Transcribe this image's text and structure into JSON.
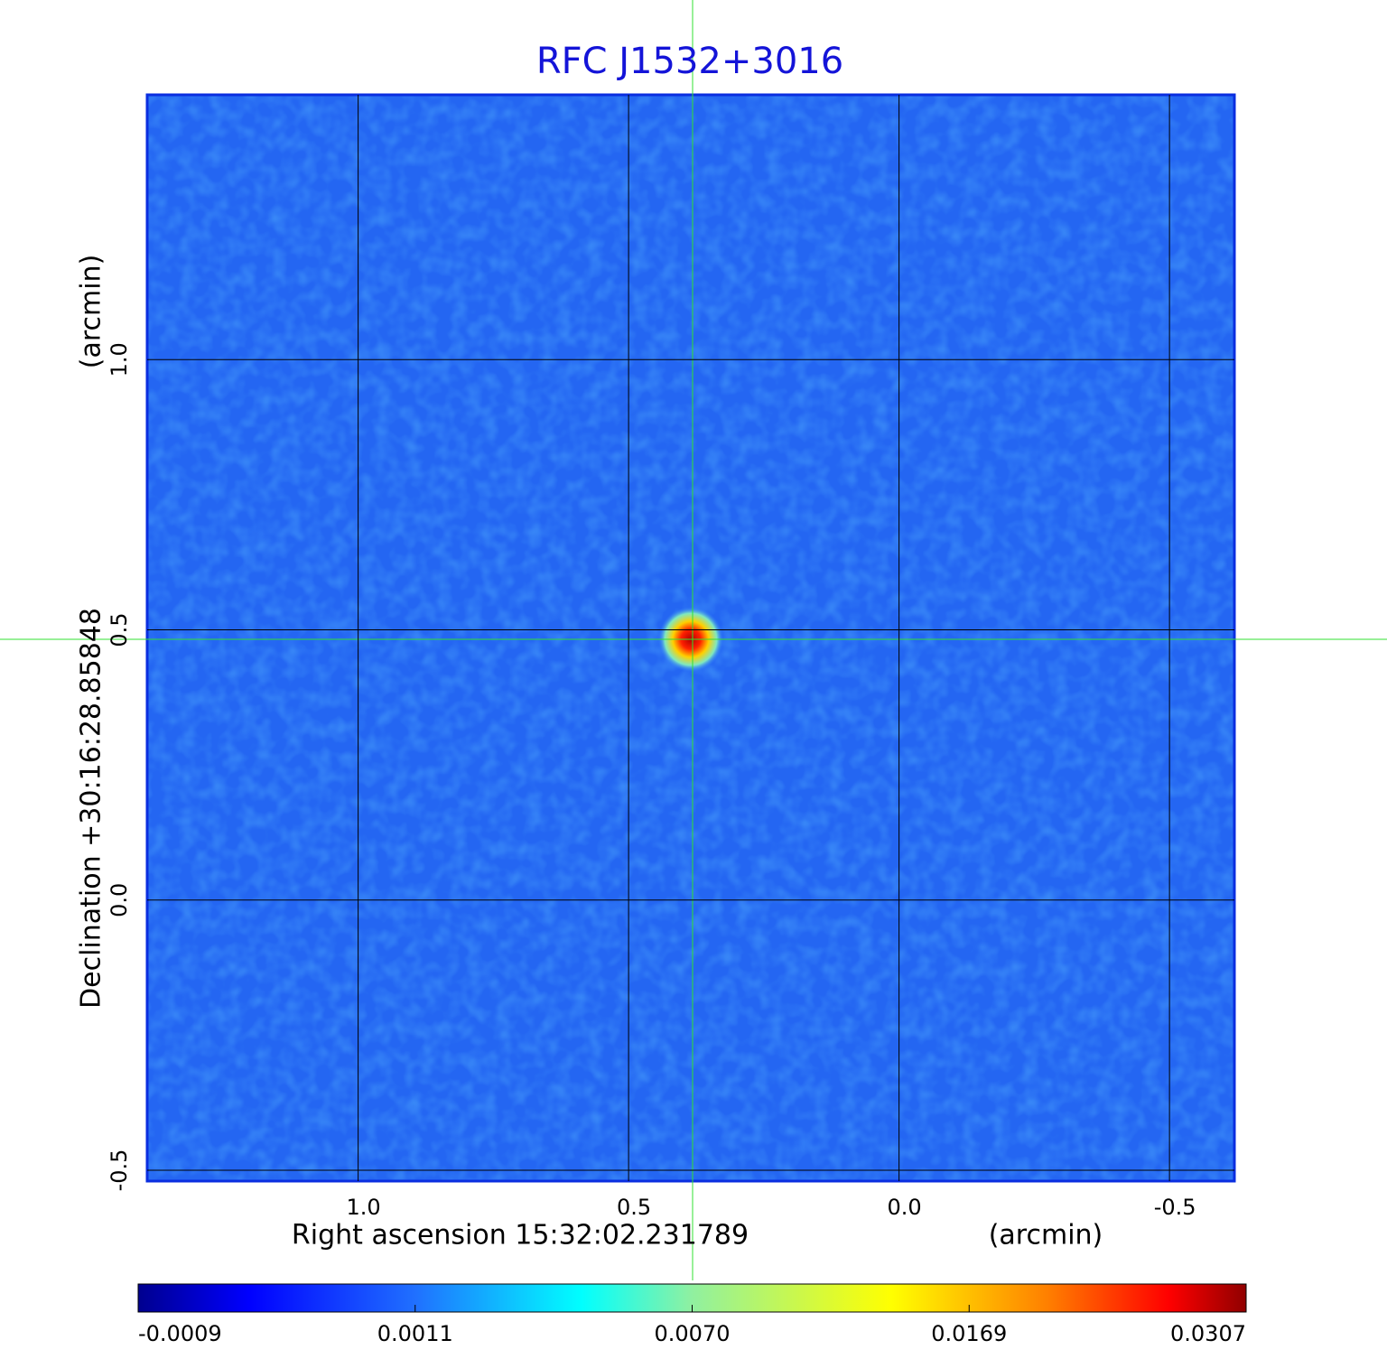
{
  "chart_data": {
    "type": "image",
    "title": "RFC J1532+3016",
    "x_label": "Right ascension  15:32:02.231789",
    "x_unit": "(arcmin)",
    "y_label": "Declination  +30:16:28.85848",
    "y_unit": "(arcmin)",
    "xlim": [
      1.39,
      -0.62
    ],
    "ylim": [
      -0.52,
      1.49
    ],
    "xticks": [
      {
        "value": 1.0,
        "label": "1.0"
      },
      0.5,
      {
        "value": 0.0,
        "label": "0.0"
      },
      -0.5
    ],
    "yticks": [
      {
        "value": -0.5,
        "label": "-0.5"
      },
      {
        "value": 0.0,
        "label": "0.0"
      },
      0.5,
      {
        "value": 1.0,
        "label": "1.0"
      }
    ],
    "grid": true,
    "colorbar_ticks": [
      -0.0009,
      0.0011,
      {
        "value": 0.007,
        "label": "0.0070"
      },
      0.0169,
      0.0307
    ]
  }
}
